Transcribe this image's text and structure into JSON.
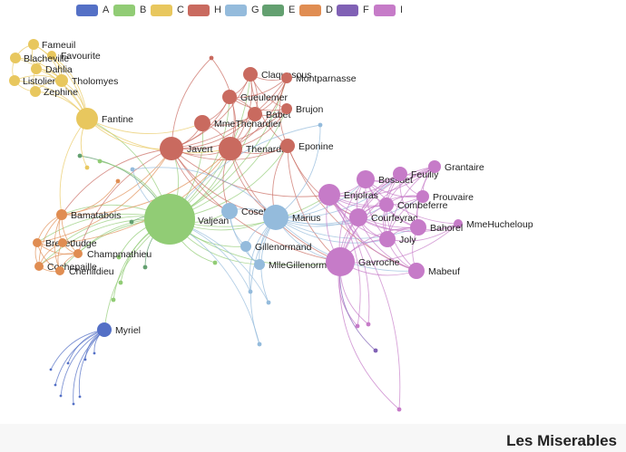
{
  "title": "Les Miserables",
  "legend": [
    {
      "name": "A",
      "color": "#5470c6"
    },
    {
      "name": "B",
      "color": "#91cc75"
    },
    {
      "name": "C",
      "color": "#e8c75e"
    },
    {
      "name": "H",
      "color": "#c96a5f"
    },
    {
      "name": "G",
      "color": "#94bbdc"
    },
    {
      "name": "E",
      "color": "#63a070"
    },
    {
      "name": "D",
      "color": "#e08d52"
    },
    {
      "name": "F",
      "color": "#8061b5"
    },
    {
      "name": "I",
      "color": "#c67bc8"
    }
  ],
  "nodes": [
    {
      "label": "Fameuil",
      "category": "C"
    },
    {
      "label": "Favourite",
      "category": "C"
    },
    {
      "label": "Blacheville",
      "category": "C"
    },
    {
      "label": "Dahlia",
      "category": "C"
    },
    {
      "label": "Listolier",
      "category": "C"
    },
    {
      "label": "Tholomyes",
      "category": "C"
    },
    {
      "label": "Zephine",
      "category": "C"
    },
    {
      "label": "Fantine",
      "category": "C"
    },
    {
      "label": "Claquesous",
      "category": "H"
    },
    {
      "label": "Montparnasse",
      "category": "H"
    },
    {
      "label": "Gueulemer",
      "category": "H"
    },
    {
      "label": "Babet",
      "category": "H"
    },
    {
      "label": "Brujon",
      "category": "H"
    },
    {
      "label": "MmeThenardier",
      "category": "H"
    },
    {
      "label": "Javert",
      "category": "H"
    },
    {
      "label": "Thenardier",
      "category": "H"
    },
    {
      "label": "Eponine",
      "category": "H"
    },
    {
      "label": "Valjean",
      "category": "B"
    },
    {
      "label": "Cosette",
      "category": "G"
    },
    {
      "label": "Marius",
      "category": "G"
    },
    {
      "label": "Gillenormand",
      "category": "G"
    },
    {
      "label": "MlleGillenormand",
      "category": "G"
    },
    {
      "label": "Bamatabois",
      "category": "D"
    },
    {
      "label": "Brevet",
      "category": "D"
    },
    {
      "label": "Judge",
      "category": "D"
    },
    {
      "label": "Champmathieu",
      "category": "D"
    },
    {
      "label": "Cochepaille",
      "category": "D"
    },
    {
      "label": "Chenildieu",
      "category": "D"
    },
    {
      "label": "Myriel",
      "category": "A"
    },
    {
      "label": "Enjolras",
      "category": "I"
    },
    {
      "label": "Bossuet",
      "category": "I"
    },
    {
      "label": "Feuilly",
      "category": "I"
    },
    {
      "label": "Grantaire",
      "category": "I"
    },
    {
      "label": "Prouvaire",
      "category": "I"
    },
    {
      "label": "Combeferre",
      "category": "I"
    },
    {
      "label": "Courfeyrac",
      "category": "I"
    },
    {
      "label": "MmeHucheloup",
      "category": "I"
    },
    {
      "label": "Bahorel",
      "category": "I"
    },
    {
      "label": "Joly",
      "category": "I"
    },
    {
      "label": "Gavroche",
      "category": "I"
    },
    {
      "label": "Mabeuf",
      "category": "I"
    }
  ]
}
